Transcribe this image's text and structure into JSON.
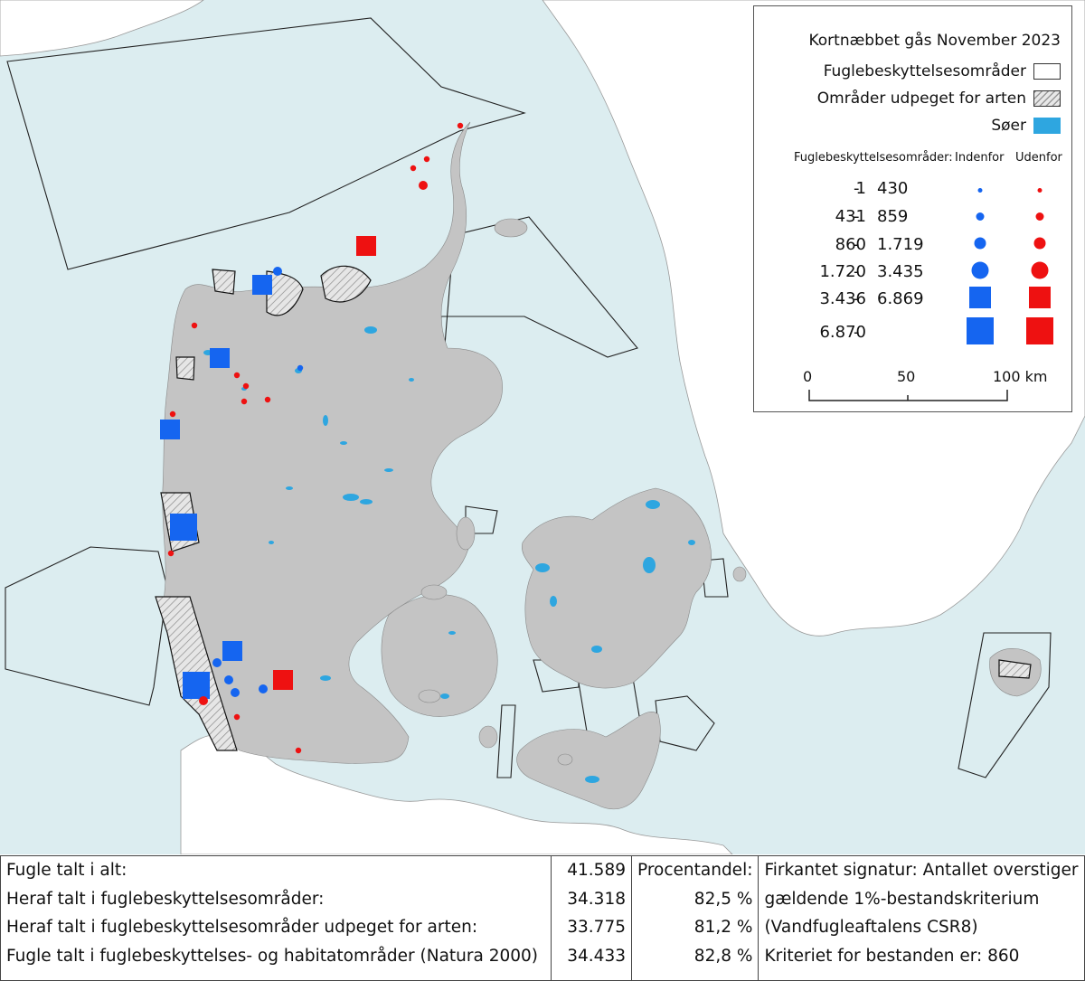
{
  "colors": {
    "sea": "#dcedf0",
    "land_denmark": "#c4c4c4",
    "land_foreign": "#ffffff",
    "lake": "#2ea6e0",
    "inside": "#1565f0",
    "outside": "#ee1111"
  },
  "legend": {
    "title": "Kortnæbbet gås November 2023",
    "items": [
      {
        "label": "Fuglebeskyttelsesområder",
        "swatch": "white"
      },
      {
        "label": "Områder udpeget for arten",
        "swatch": "hatch"
      },
      {
        "label": "Søer",
        "swatch": "lake"
      }
    ],
    "header_label": "Fuglebeskyttelsesområder:",
    "inside_label": "Indenfor",
    "outside_label": "Udenfor",
    "classes": [
      {
        "from": "1",
        "dash": "-",
        "to": "430",
        "symbol": "dot-xs"
      },
      {
        "from": "431",
        "dash": "-",
        "to": "859",
        "symbol": "dot-s"
      },
      {
        "from": "860",
        "dash": "-",
        "to": "1.719",
        "symbol": "dot-m"
      },
      {
        "from": "1.720",
        "dash": "-",
        "to": "3.435",
        "symbol": "dot-l"
      },
      {
        "from": "3.436",
        "dash": "-",
        "to": "6.869",
        "symbol": "square-m"
      },
      {
        "from": "6.870",
        "dash": "-",
        "to": "",
        "symbol": "square-l"
      }
    ],
    "scale": {
      "labels": [
        "0",
        "50",
        "100 km"
      ]
    }
  },
  "stats": {
    "labels": [
      "Fugle talt i alt:",
      "Heraf talt i fuglebeskyttelsesområder:",
      "Heraf talt i fuglebeskyttelsesområder udpeget for arten:",
      "Fugle talt i fuglebeskyttelses- og habitatområder (Natura 2000)"
    ],
    "counts": [
      "41.589",
      "34.318",
      "33.775",
      "34.433"
    ],
    "percent_header": "Procentandel:",
    "percents": [
      "82,5 %",
      "81,2 %",
      "82,8 %"
    ],
    "notes": [
      "Firkantet signatur: Antallet overstiger",
      "gældende 1%-bestandskriterium",
      "(Vandfugleaftalens CSR8)",
      "Kriteriet for bestanden er: 860"
    ]
  },
  "observations": [
    {
      "type": "outside",
      "class": 5
    },
    {
      "type": "inside",
      "class": 5
    },
    {
      "type": "inside",
      "class": 5
    },
    {
      "type": "inside",
      "class": 5
    },
    {
      "type": "inside",
      "class": 6
    },
    {
      "type": "inside",
      "class": 5
    },
    {
      "type": "inside",
      "class": 6
    },
    {
      "type": "outside",
      "class": 5
    },
    {
      "type": "inside",
      "class": 2
    },
    {
      "type": "inside",
      "class": 2
    },
    {
      "type": "inside",
      "class": 2
    },
    {
      "type": "inside",
      "class": 1
    },
    {
      "type": "outside",
      "class": 1
    },
    {
      "type": "outside",
      "class": 1
    },
    {
      "type": "outside",
      "class": 1
    },
    {
      "type": "outside",
      "class": 2
    },
    {
      "type": "outside",
      "class": 1
    },
    {
      "type": "outside",
      "class": 1
    },
    {
      "type": "outside",
      "class": 1
    },
    {
      "type": "outside",
      "class": 1
    },
    {
      "type": "outside",
      "class": 1
    },
    {
      "type": "outside",
      "class": 1
    },
    {
      "type": "outside",
      "class": 1
    },
    {
      "type": "outside",
      "class": 1
    },
    {
      "type": "outside",
      "class": 2
    },
    {
      "type": "inside",
      "class": 2
    },
    {
      "type": "inside",
      "class": 2
    },
    {
      "type": "outside",
      "class": 1
    }
  ]
}
